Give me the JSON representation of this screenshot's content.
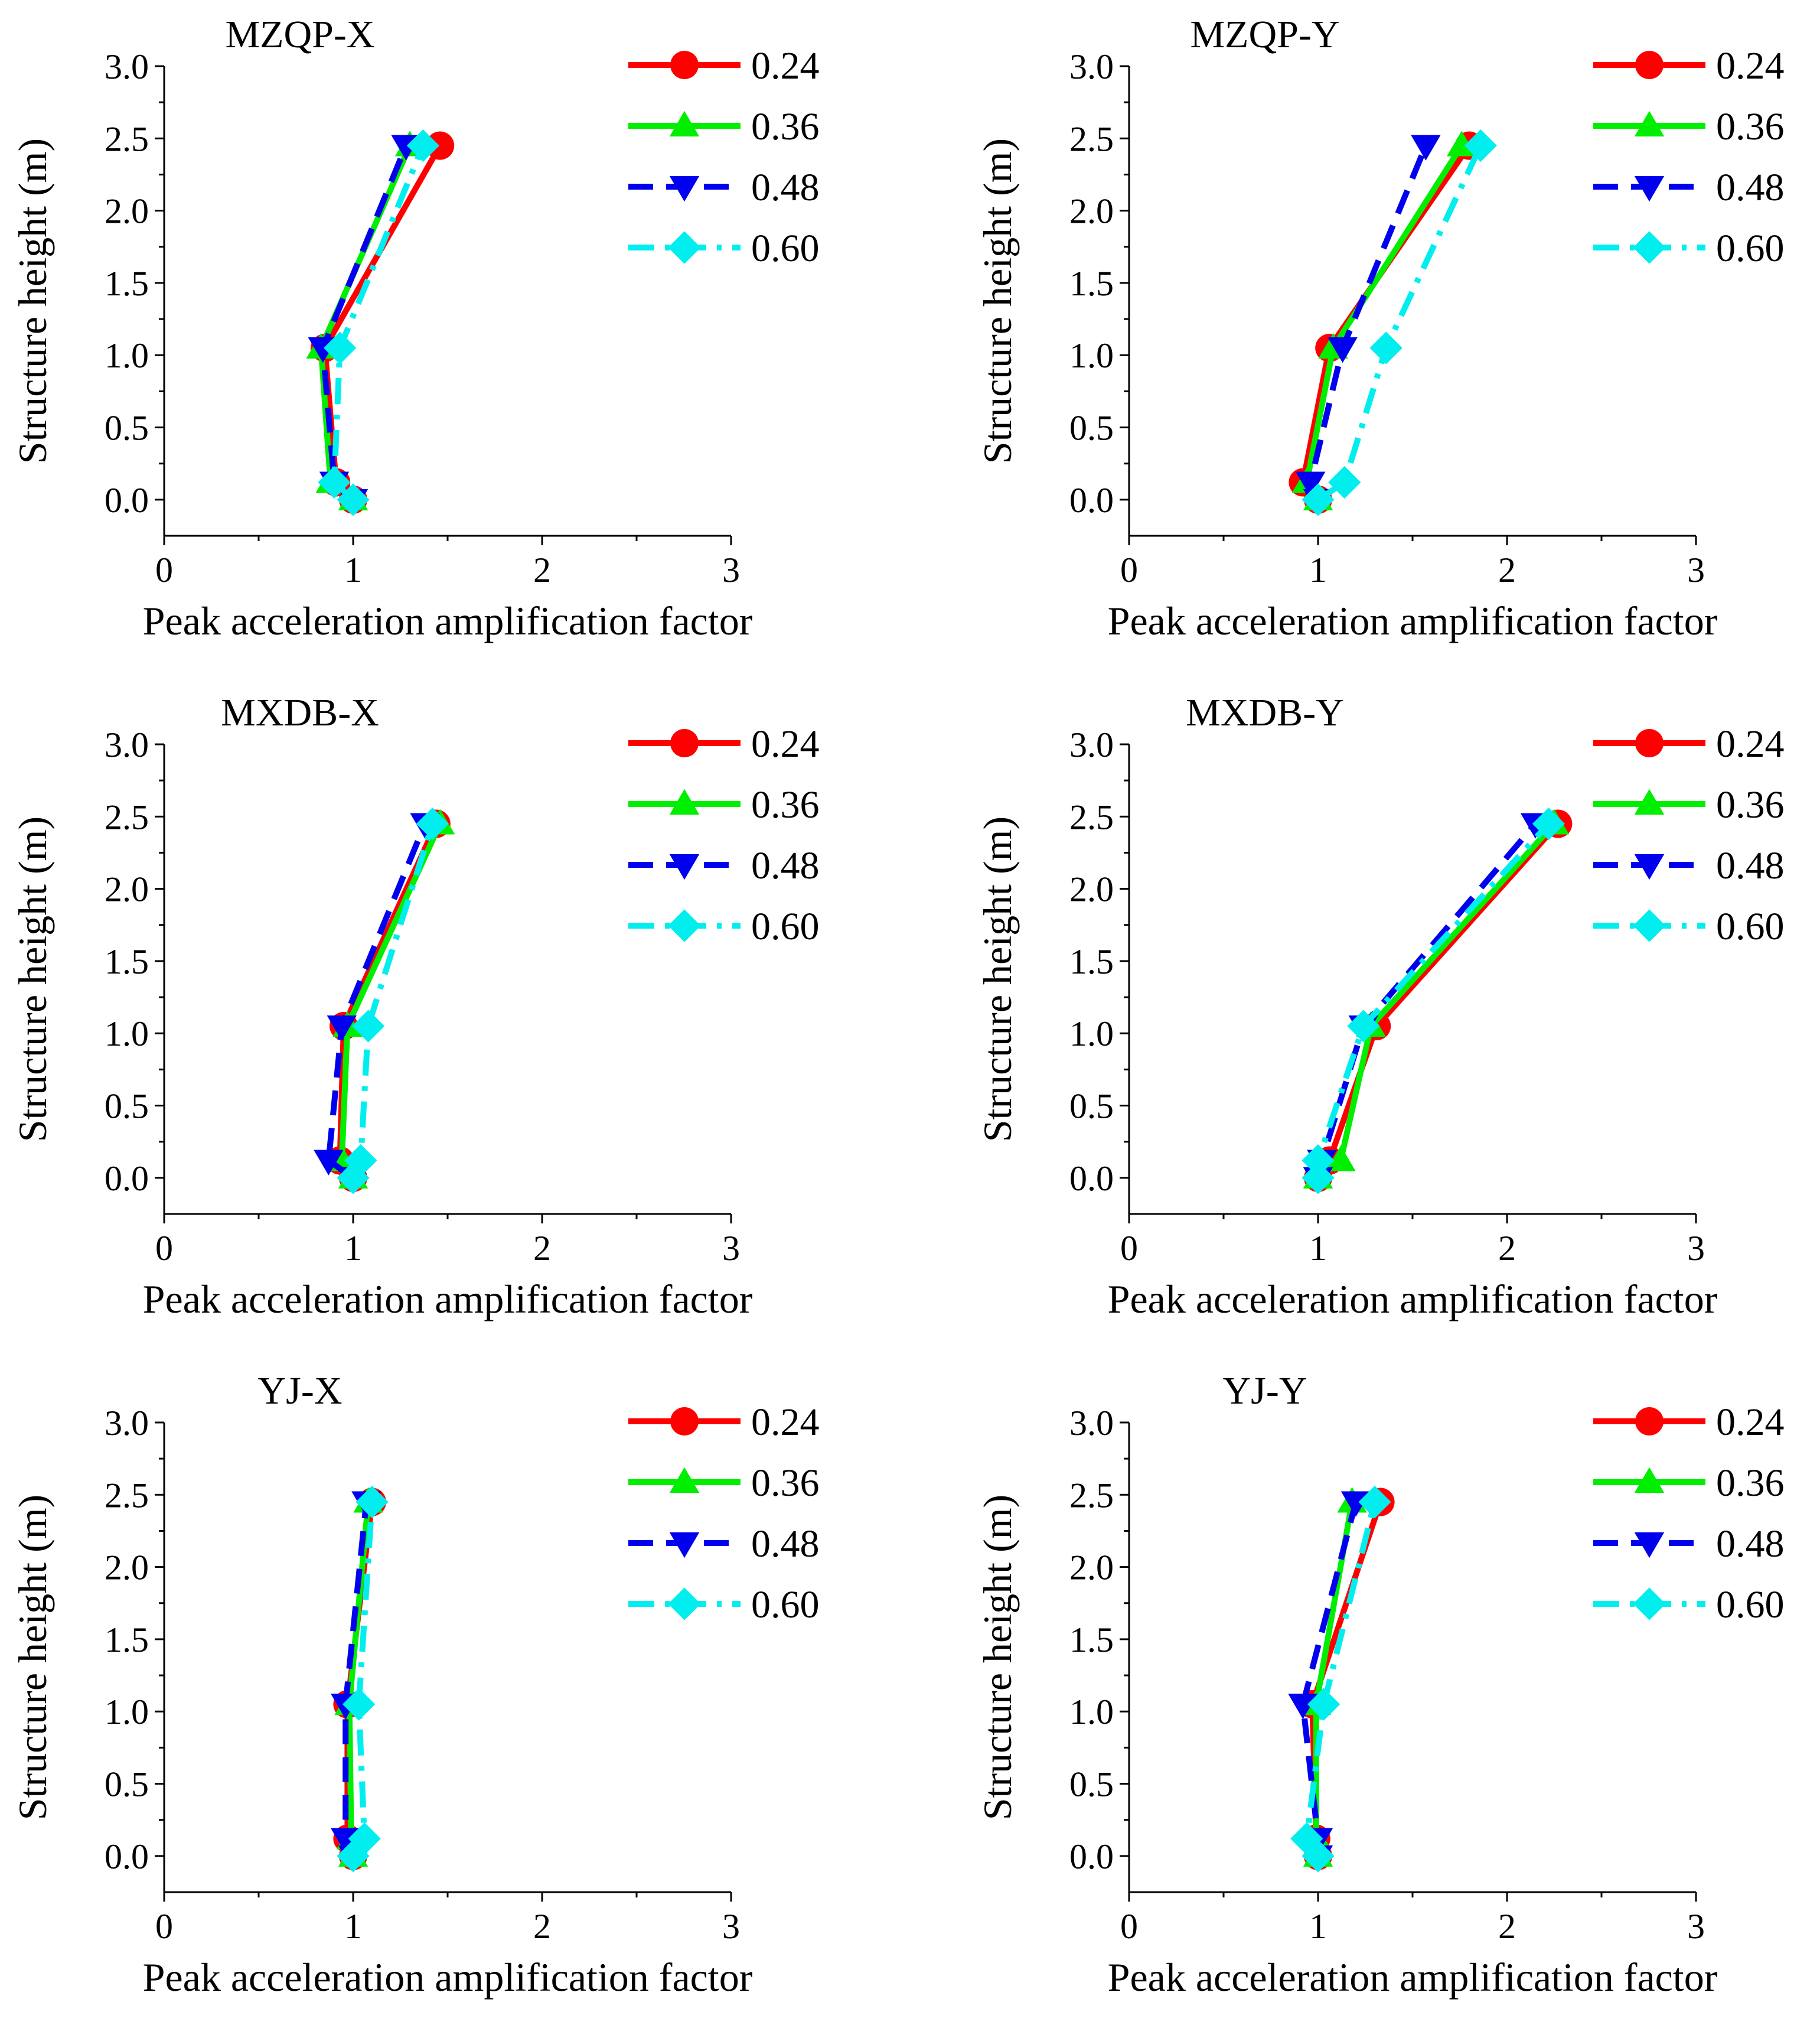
{
  "chart_data": [
    {
      "type": "line",
      "title": "MZQP-X",
      "xlabel": "Peak acceleration amplification factor",
      "ylabel": "Structure height (m)",
      "xlim": [
        0,
        3
      ],
      "ylim": [
        -0.25,
        3.0
      ],
      "xticks": [
        "0",
        "1",
        "2",
        "3"
      ],
      "yticks": [
        "0.0",
        "0.5",
        "1.0",
        "1.5",
        "2.0",
        "2.5",
        "3.0"
      ],
      "heights": [
        0.0,
        0.12,
        1.05,
        2.45
      ],
      "series": [
        {
          "name": "0.24",
          "values": [
            1.0,
            0.91,
            0.85,
            1.46
          ]
        },
        {
          "name": "0.36",
          "values": [
            1.0,
            0.88,
            0.83,
            1.3
          ]
        },
        {
          "name": "0.48",
          "values": [
            1.0,
            0.9,
            0.84,
            1.28
          ]
        },
        {
          "name": "0.60",
          "values": [
            1.0,
            0.9,
            0.93,
            1.37
          ]
        }
      ]
    },
    {
      "type": "line",
      "title": "MZQP-Y",
      "xlabel": "Peak acceleration amplification factor",
      "ylabel": "Structure height (m)",
      "xlim": [
        0,
        3
      ],
      "ylim": [
        -0.25,
        3.0
      ],
      "xticks": [
        "0",
        "1",
        "2",
        "3"
      ],
      "yticks": [
        "0.0",
        "0.5",
        "1.0",
        "1.5",
        "2.0",
        "2.5",
        "3.0"
      ],
      "heights": [
        0.0,
        0.12,
        1.05,
        2.45
      ],
      "series": [
        {
          "name": "0.24",
          "values": [
            1.0,
            0.92,
            1.06,
            1.8
          ]
        },
        {
          "name": "0.36",
          "values": [
            1.0,
            0.94,
            1.08,
            1.76
          ]
        },
        {
          "name": "0.48",
          "values": [
            1.0,
            0.96,
            1.13,
            1.57
          ]
        },
        {
          "name": "0.60",
          "values": [
            1.0,
            1.14,
            1.36,
            1.86
          ]
        }
      ]
    },
    {
      "type": "line",
      "title": "MXDB-X",
      "xlabel": "Peak acceleration amplification factor",
      "ylabel": "Structure height (m)",
      "xlim": [
        0,
        3
      ],
      "ylim": [
        -0.25,
        3.0
      ],
      "xticks": [
        "0",
        "1",
        "2",
        "3"
      ],
      "yticks": [
        "0.0",
        "0.5",
        "1.0",
        "1.5",
        "2.0",
        "2.5",
        "3.0"
      ],
      "heights": [
        0.0,
        0.12,
        1.05,
        2.45
      ],
      "series": [
        {
          "name": "0.24",
          "values": [
            1.0,
            0.93,
            0.95,
            1.44
          ]
        },
        {
          "name": "0.36",
          "values": [
            1.0,
            0.94,
            0.97,
            1.46
          ]
        },
        {
          "name": "0.48",
          "values": [
            1.0,
            0.87,
            0.94,
            1.38
          ]
        },
        {
          "name": "0.60",
          "values": [
            1.0,
            1.04,
            1.08,
            1.42
          ]
        }
      ]
    },
    {
      "type": "line",
      "title": "MXDB-Y",
      "xlabel": "Peak acceleration amplification factor",
      "ylabel": "Structure height (m)",
      "xlim": [
        0,
        3
      ],
      "ylim": [
        -0.25,
        3.0
      ],
      "xticks": [
        "0",
        "1",
        "2",
        "3"
      ],
      "yticks": [
        "0.0",
        "0.5",
        "1.0",
        "1.5",
        "2.0",
        "2.5",
        "3.0"
      ],
      "heights": [
        0.0,
        0.12,
        1.05,
        2.45
      ],
      "series": [
        {
          "name": "0.24",
          "values": [
            1.0,
            1.06,
            1.31,
            2.27
          ]
        },
        {
          "name": "0.36",
          "values": [
            1.0,
            1.12,
            1.28,
            2.25
          ]
        },
        {
          "name": "0.48",
          "values": [
            1.0,
            1.02,
            1.24,
            2.15
          ]
        },
        {
          "name": "0.60",
          "values": [
            1.0,
            1.0,
            1.24,
            2.22
          ]
        }
      ]
    },
    {
      "type": "line",
      "title": "YJ-X",
      "xlabel": "Peak acceleration amplification factor",
      "ylabel": "Structure height (m)",
      "xlim": [
        0,
        3
      ],
      "ylim": [
        -0.25,
        3.0
      ],
      "xticks": [
        "0",
        "1",
        "2",
        "3"
      ],
      "yticks": [
        "0.0",
        "0.5",
        "1.0",
        "1.5",
        "2.0",
        "2.5",
        "3.0"
      ],
      "heights": [
        0.0,
        0.12,
        1.05,
        2.45
      ],
      "series": [
        {
          "name": "0.24",
          "values": [
            1.0,
            0.97,
            0.97,
            1.1
          ]
        },
        {
          "name": "0.36",
          "values": [
            1.0,
            0.99,
            0.98,
            1.08
          ]
        },
        {
          "name": "0.48",
          "values": [
            1.0,
            0.96,
            0.96,
            1.07
          ]
        },
        {
          "name": "0.60",
          "values": [
            1.0,
            1.06,
            1.03,
            1.1
          ]
        }
      ]
    },
    {
      "type": "line",
      "title": "YJ-Y",
      "xlabel": "Peak acceleration amplification factor",
      "ylabel": "Structure height (m)",
      "xlim": [
        0,
        3
      ],
      "ylim": [
        -0.25,
        3.0
      ],
      "xticks": [
        "0",
        "1",
        "2",
        "3"
      ],
      "yticks": [
        "0.0",
        "0.5",
        "1.0",
        "1.5",
        "2.0",
        "2.5",
        "3.0"
      ],
      "heights": [
        0.0,
        0.12,
        1.05,
        2.45
      ],
      "series": [
        {
          "name": "0.24",
          "values": [
            1.0,
            0.99,
            0.97,
            1.33
          ]
        },
        {
          "name": "0.36",
          "values": [
            1.0,
            0.99,
            0.99,
            1.18
          ]
        },
        {
          "name": "0.48",
          "values": [
            1.0,
            1.0,
            0.92,
            1.2
          ]
        },
        {
          "name": "0.60",
          "values": [
            1.0,
            0.94,
            1.03,
            1.3
          ]
        }
      ]
    }
  ],
  "series_style": [
    {
      "color": "#ff0000",
      "marker": "circle",
      "dash": "solid"
    },
    {
      "color": "#00ee00",
      "marker": "triangle-up",
      "dash": "solid"
    },
    {
      "color": "#0000ee",
      "marker": "triangle-down",
      "dash": "dashed"
    },
    {
      "color": "#00eeee",
      "marker": "diamond",
      "dash": "dash-dot"
    }
  ]
}
